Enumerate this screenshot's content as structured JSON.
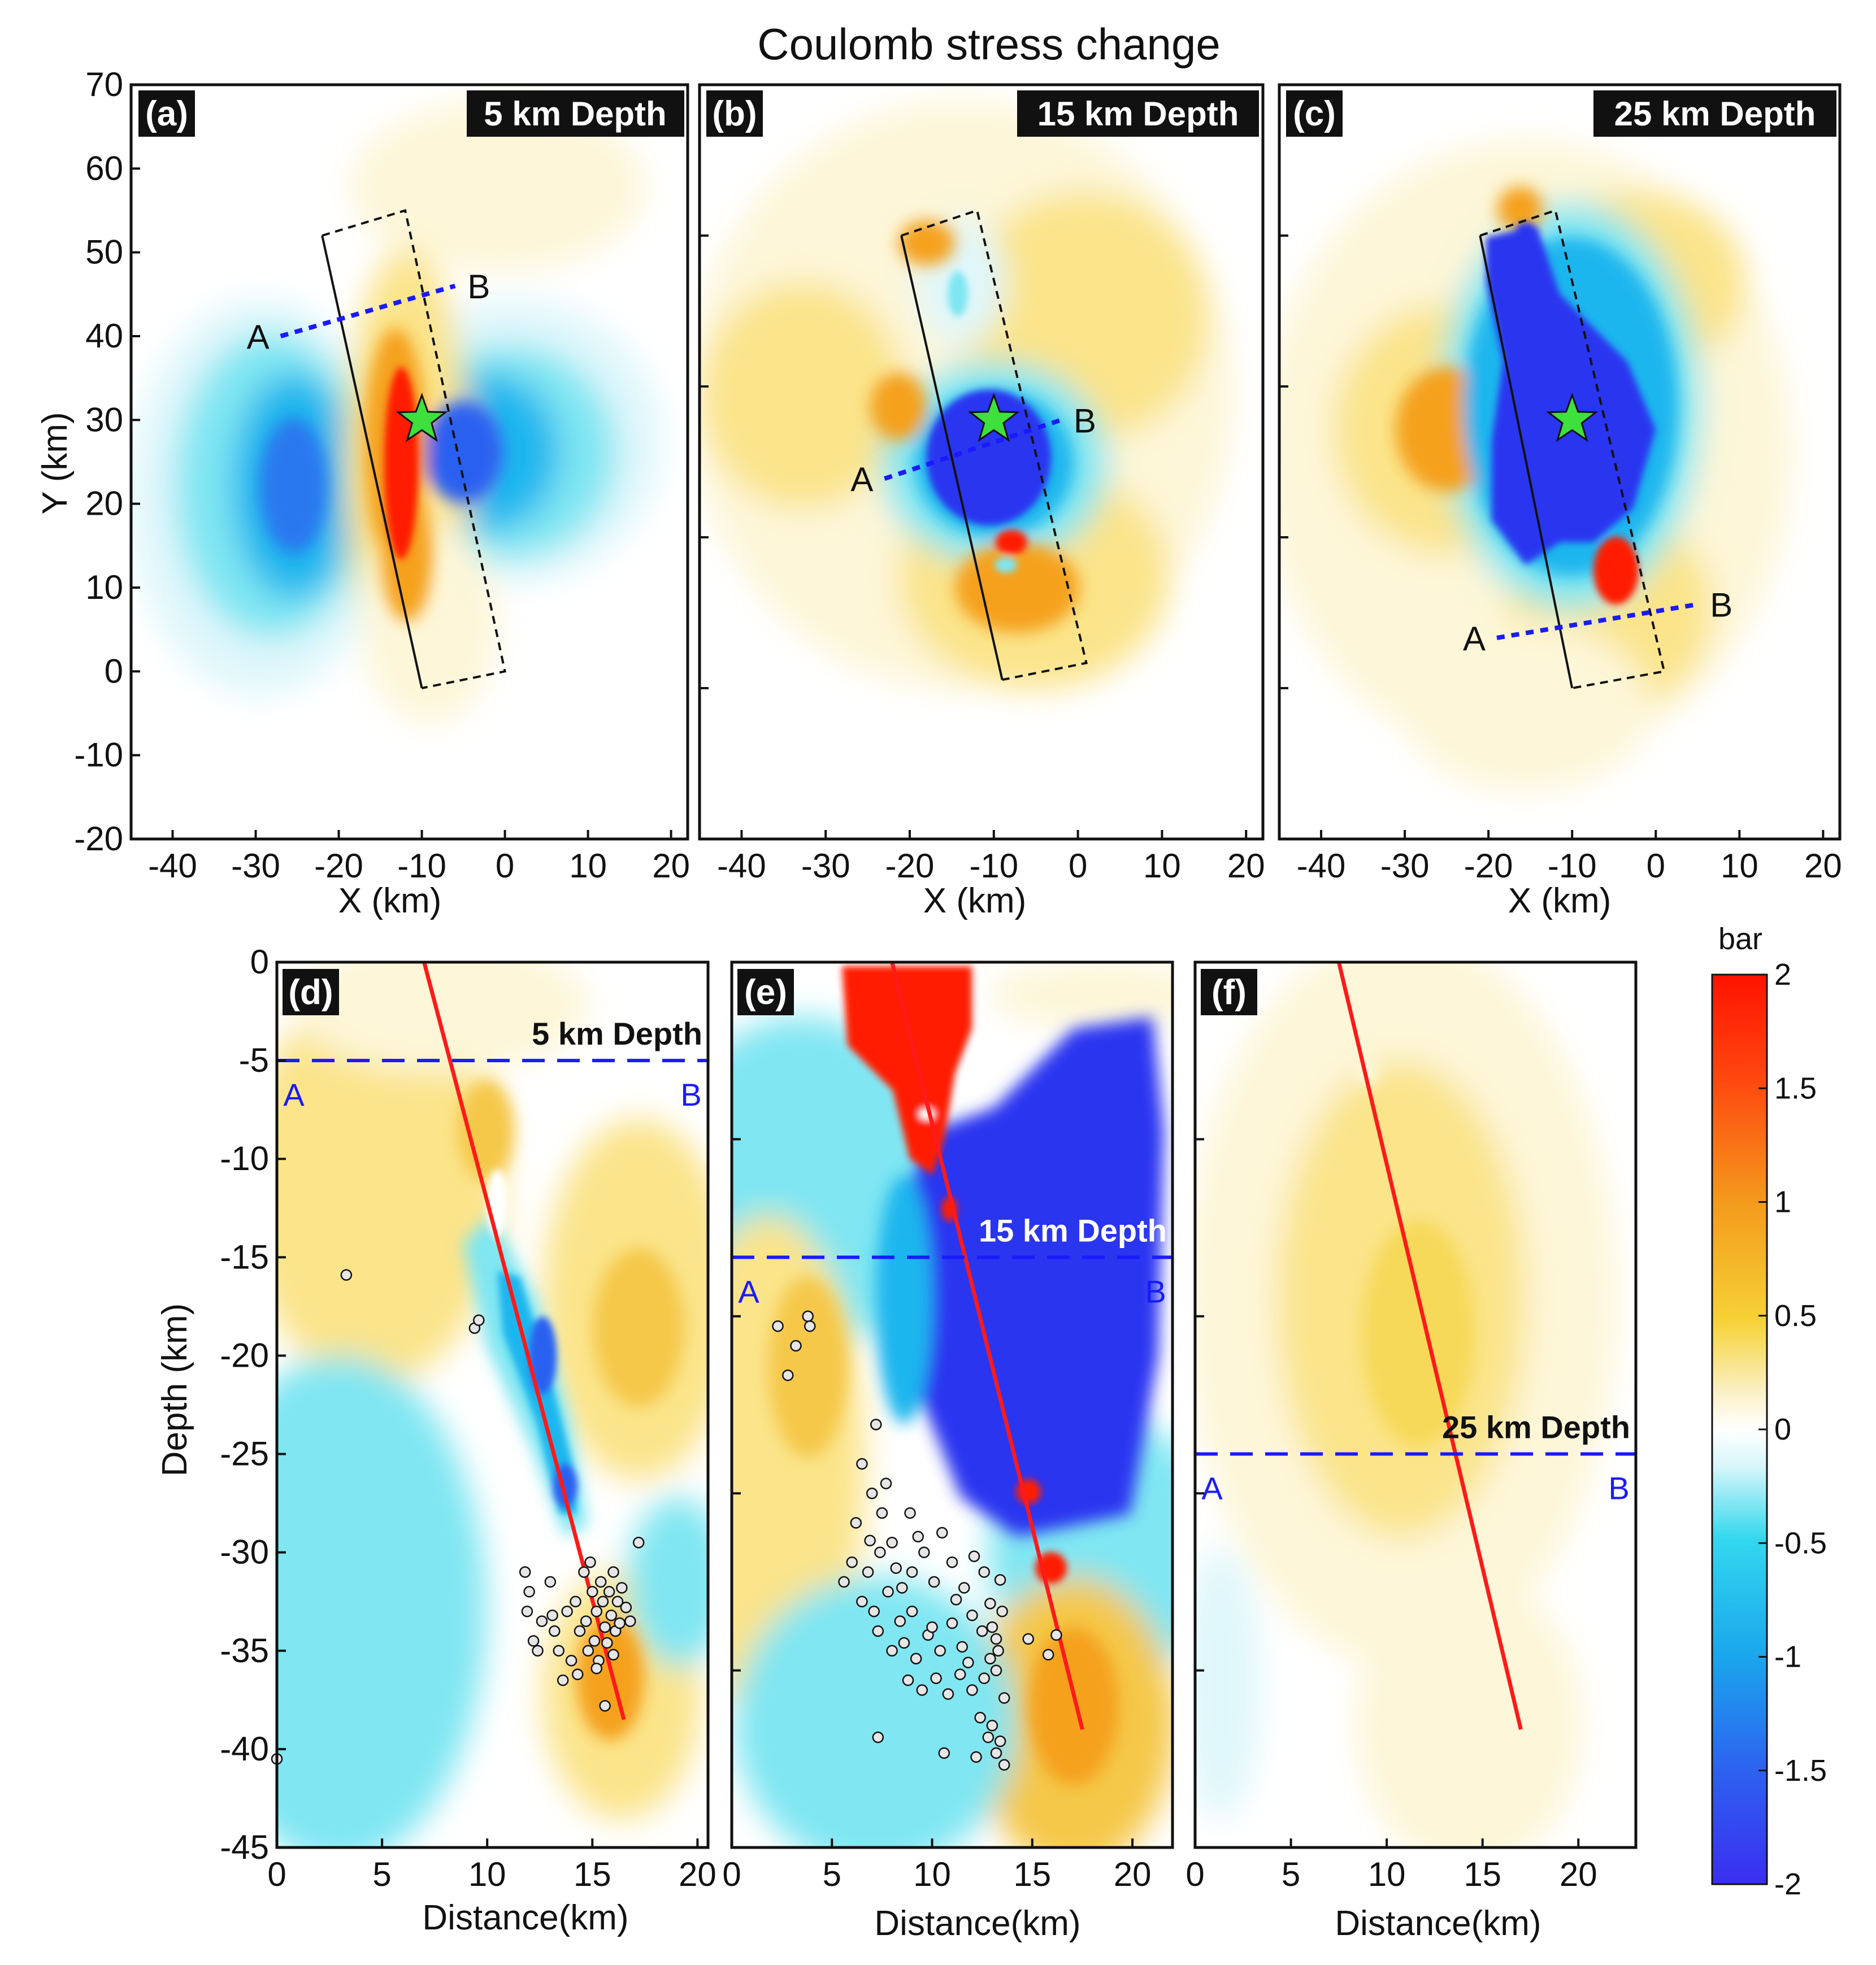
{
  "title": "Coulomb stress change",
  "colors": {
    "pos_strong": "#ff1a00",
    "pos_mid": "#f5a11c",
    "pos_weak": "#fbe48a",
    "pos_faint": "#fdf6d8",
    "neg_faint": "#dff7fb",
    "neg_weak": "#7fe6f2",
    "neg_mid": "#1fb6ee",
    "neg_strong": "#2a36f0",
    "star": "#3ee03e",
    "profile_line": "#1a1aff",
    "fault_line": "#ff1a1a",
    "quake_fill": "#e6e6e6"
  },
  "chart_data": [
    {
      "type": "heatmap",
      "panel": "(a)",
      "depth_label": "5 km Depth",
      "xlabel": "X (km)",
      "ylabel": "Y (km)",
      "xlim": [
        -45,
        22
      ],
      "ylim": [
        -20,
        70
      ],
      "xticks": [
        "-40",
        "-30",
        "-20",
        "-10",
        "0",
        "10",
        "20"
      ],
      "xtick_values": [
        -40,
        -30,
        -20,
        -10,
        0,
        10,
        20
      ],
      "yticks": [
        "70",
        "60",
        "50",
        "40",
        "30",
        "20",
        "10",
        "0",
        "-10",
        "-20"
      ],
      "ytick_values": [
        70,
        60,
        50,
        40,
        30,
        20,
        10,
        0,
        -10,
        -20
      ],
      "fault_trace": [
        [
          -22,
          52
        ],
        [
          -10,
          -2
        ]
      ],
      "fault_box": [
        [
          -22,
          52
        ],
        [
          -12,
          55
        ],
        [
          0,
          0
        ],
        [
          -10,
          -2
        ]
      ],
      "profile": {
        "start": [
          -27,
          40
        ],
        "end": [
          -6,
          46
        ],
        "label_start": "A",
        "label_end": "B"
      },
      "epicenter": [
        -10,
        30
      ]
    },
    {
      "type": "heatmap",
      "panel": "(b)",
      "depth_label": "15 km Depth",
      "xlabel": "X (km)",
      "xlim": [
        -45,
        22
      ],
      "ylim": [
        -20,
        70
      ],
      "xticks": [
        "-40",
        "-30",
        "-20",
        "-10",
        "0",
        "10",
        "20"
      ],
      "xtick_values": [
        -40,
        -30,
        -20,
        -10,
        0,
        10,
        20
      ],
      "fault_trace": [
        [
          -21,
          52
        ],
        [
          -9,
          -1
        ]
      ],
      "fault_box": [
        [
          -21,
          52
        ],
        [
          -12,
          55
        ],
        [
          1,
          1
        ],
        [
          -9,
          -1
        ]
      ],
      "profile": {
        "start": [
          -23,
          23
        ],
        "end": [
          -2,
          30
        ],
        "label_start": "A",
        "label_end": "B"
      },
      "epicenter": [
        -10,
        30
      ]
    },
    {
      "type": "heatmap",
      "panel": "(c)",
      "depth_label": "25 km Depth",
      "xlabel": "X (km)",
      "xlim": [
        -45,
        22
      ],
      "ylim": [
        -20,
        70
      ],
      "xticks": [
        "-40",
        "-30",
        "-20",
        "-10",
        "0",
        "10",
        "20"
      ],
      "xtick_values": [
        -40,
        -30,
        -20,
        -10,
        0,
        10,
        20
      ],
      "fault_trace": [
        [
          -21,
          52
        ],
        [
          -10,
          -2
        ]
      ],
      "fault_box": [
        [
          -21,
          52
        ],
        [
          -12,
          55
        ],
        [
          1,
          0
        ],
        [
          -10,
          -2
        ]
      ],
      "profile": {
        "start": [
          -19,
          4
        ],
        "end": [
          5,
          8
        ],
        "label_start": "A",
        "label_end": "B"
      },
      "epicenter": [
        -10,
        30
      ]
    },
    {
      "type": "heatmap",
      "panel": "(d)",
      "xlabel": "Distance(km)",
      "ylabel": "Depth (km)",
      "xlim": [
        0,
        20.5
      ],
      "ylim": [
        -45,
        0
      ],
      "xticks": [
        "0",
        "5",
        "10",
        "15",
        "20"
      ],
      "xtick_values": [
        0,
        5,
        10,
        15,
        20
      ],
      "yticks": [
        "0",
        "-5",
        "-10",
        "-15",
        "-20",
        "-25",
        "-30",
        "-35",
        "-40",
        "-45"
      ],
      "ytick_values": [
        0,
        -5,
        -10,
        -15,
        -20,
        -25,
        -30,
        -35,
        -40,
        -45
      ],
      "section_depth": -5,
      "section_label": "5 km Depth",
      "section_letters": [
        "A",
        "B"
      ],
      "fault_trace": [
        [
          7,
          0
        ],
        [
          16.5,
          -38.5
        ]
      ],
      "earthquakes": [
        [
          3.3,
          -15.9
        ],
        [
          9.4,
          -18.6
        ],
        [
          9.6,
          -18.2
        ],
        [
          0,
          -40.5
        ],
        [
          11.8,
          -31
        ],
        [
          12,
          -32
        ],
        [
          11.9,
          -33
        ],
        [
          12.2,
          -34.5
        ],
        [
          12.4,
          -35
        ],
        [
          12.6,
          -33.5
        ],
        [
          13,
          -31.5
        ],
        [
          13.2,
          -34
        ],
        [
          13.4,
          -35
        ],
        [
          13.6,
          -36.5
        ],
        [
          13.8,
          -33
        ],
        [
          14,
          -35.5
        ],
        [
          14.2,
          -32.5
        ],
        [
          14.4,
          -34
        ],
        [
          14.6,
          -31
        ],
        [
          14.7,
          -33.5
        ],
        [
          14.8,
          -35
        ],
        [
          14.9,
          -30.5
        ],
        [
          15,
          -32
        ],
        [
          15.1,
          -34.5
        ],
        [
          15.2,
          -33
        ],
        [
          15.3,
          -35.5
        ],
        [
          15.4,
          -31.5
        ],
        [
          15.5,
          -32.5
        ],
        [
          15.6,
          -33.8
        ],
        [
          15.7,
          -34.6
        ],
        [
          15.8,
          -32
        ],
        [
          15.9,
          -33.2
        ],
        [
          16,
          -31
        ],
        [
          16.1,
          -34
        ],
        [
          16.2,
          -32.5
        ],
        [
          16.3,
          -33.6
        ],
        [
          16.4,
          -31.8
        ],
        [
          16.6,
          -32.8
        ],
        [
          16.8,
          -33.5
        ],
        [
          17.2,
          -29.5
        ],
        [
          15.6,
          -37.8
        ],
        [
          14.3,
          -36.2
        ],
        [
          13.1,
          -33.2
        ],
        [
          15.2,
          -35.9
        ],
        [
          16,
          -35.2
        ]
      ]
    },
    {
      "type": "heatmap",
      "panel": "(e)",
      "xlabel": "Distance(km)",
      "xlim": [
        0,
        22
      ],
      "ylim": [
        -45,
        0
      ],
      "xticks": [
        "0",
        "5",
        "10",
        "15",
        "20"
      ],
      "xtick_values": [
        0,
        5,
        10,
        15,
        20
      ],
      "section_depth": -15,
      "section_label": "15 km Depth",
      "section_letters": [
        "A",
        "B"
      ],
      "fault_trace": [
        [
          8,
          0
        ],
        [
          17.5,
          -39
        ]
      ],
      "earthquakes": [
        [
          2.3,
          -18.5
        ],
        [
          3.2,
          -19.5
        ],
        [
          2.8,
          -21
        ],
        [
          3.8,
          -18
        ],
        [
          3.9,
          -18.5
        ],
        [
          7.2,
          -23.5
        ],
        [
          6.5,
          -25.5
        ],
        [
          7,
          -27
        ],
        [
          6.2,
          -28.5
        ],
        [
          7.5,
          -28
        ],
        [
          8,
          -29.5
        ],
        [
          6,
          -30.5
        ],
        [
          6.8,
          -31
        ],
        [
          7.4,
          -30
        ],
        [
          8.2,
          -30.8
        ],
        [
          5.6,
          -31.5
        ],
        [
          6.5,
          -32.5
        ],
        [
          7.1,
          -33
        ],
        [
          7.8,
          -32
        ],
        [
          8.4,
          -33.5
        ],
        [
          9,
          -31
        ],
        [
          9.6,
          -30
        ],
        [
          10.1,
          -31.5
        ],
        [
          10.5,
          -29
        ],
        [
          11,
          -30.5
        ],
        [
          11.6,
          -31.8
        ],
        [
          12.1,
          -30.2
        ],
        [
          7.3,
          -34
        ],
        [
          8,
          -35
        ],
        [
          8.6,
          -34.6
        ],
        [
          9.2,
          -35.4
        ],
        [
          9.8,
          -34.2
        ],
        [
          10.4,
          -35
        ],
        [
          11,
          -33.6
        ],
        [
          11.5,
          -34.8
        ],
        [
          12,
          -33.2
        ],
        [
          12.5,
          -34
        ],
        [
          12.9,
          -32.6
        ],
        [
          13.2,
          -34.4
        ],
        [
          13.5,
          -33
        ],
        [
          13.4,
          -31.4
        ],
        [
          8.8,
          -36.5
        ],
        [
          9.5,
          -37
        ],
        [
          10.2,
          -36.4
        ],
        [
          10.8,
          -37.2
        ],
        [
          11.4,
          -36.2
        ],
        [
          12,
          -37
        ],
        [
          12.6,
          -36.4
        ],
        [
          13.2,
          -36
        ],
        [
          13.6,
          -37.4
        ],
        [
          12.4,
          -38.4
        ],
        [
          12.8,
          -39.4
        ],
        [
          13.2,
          -40.2
        ],
        [
          13.6,
          -40.8
        ],
        [
          13,
          -38.8
        ],
        [
          13.4,
          -39.6
        ],
        [
          12.2,
          -40.4
        ],
        [
          10.6,
          -40.2
        ],
        [
          7.3,
          -39.4
        ],
        [
          12.9,
          -35.4
        ],
        [
          13.3,
          -35
        ],
        [
          11.8,
          -35.6
        ],
        [
          9,
          -33
        ],
        [
          8.5,
          -31.8
        ],
        [
          10,
          -33.8
        ],
        [
          11.2,
          -32.4
        ],
        [
          12.6,
          -31
        ],
        [
          13,
          -33.8
        ],
        [
          6.9,
          -29.4
        ],
        [
          7.7,
          -26.5
        ],
        [
          8.9,
          -28
        ],
        [
          9.3,
          -29.2
        ],
        [
          14.8,
          -34.4
        ],
        [
          15.8,
          -35.2
        ],
        [
          16.2,
          -34.2
        ]
      ]
    },
    {
      "type": "heatmap",
      "panel": "(f)",
      "xlabel": "Distance(km)",
      "xlim": [
        0,
        23
      ],
      "ylim": [
        -45,
        0
      ],
      "xticks": [
        "0",
        "5",
        "10",
        "15",
        "20"
      ],
      "xtick_values": [
        0,
        5,
        10,
        15,
        20
      ],
      "section_depth": -25,
      "section_label": "25 km Depth",
      "section_letters": [
        "A",
        "B"
      ],
      "fault_trace": [
        [
          7.5,
          0
        ],
        [
          17,
          -39
        ]
      ]
    }
  ],
  "colorbar": {
    "unit": "bar",
    "ticks": [
      "2",
      "1.5",
      "1",
      "0.5",
      "0",
      "-0.5",
      "-1",
      "-1.5",
      "-2"
    ],
    "tick_values": [
      2,
      1.5,
      1,
      0.5,
      0,
      -0.5,
      -1,
      -1.5,
      -2
    ]
  }
}
